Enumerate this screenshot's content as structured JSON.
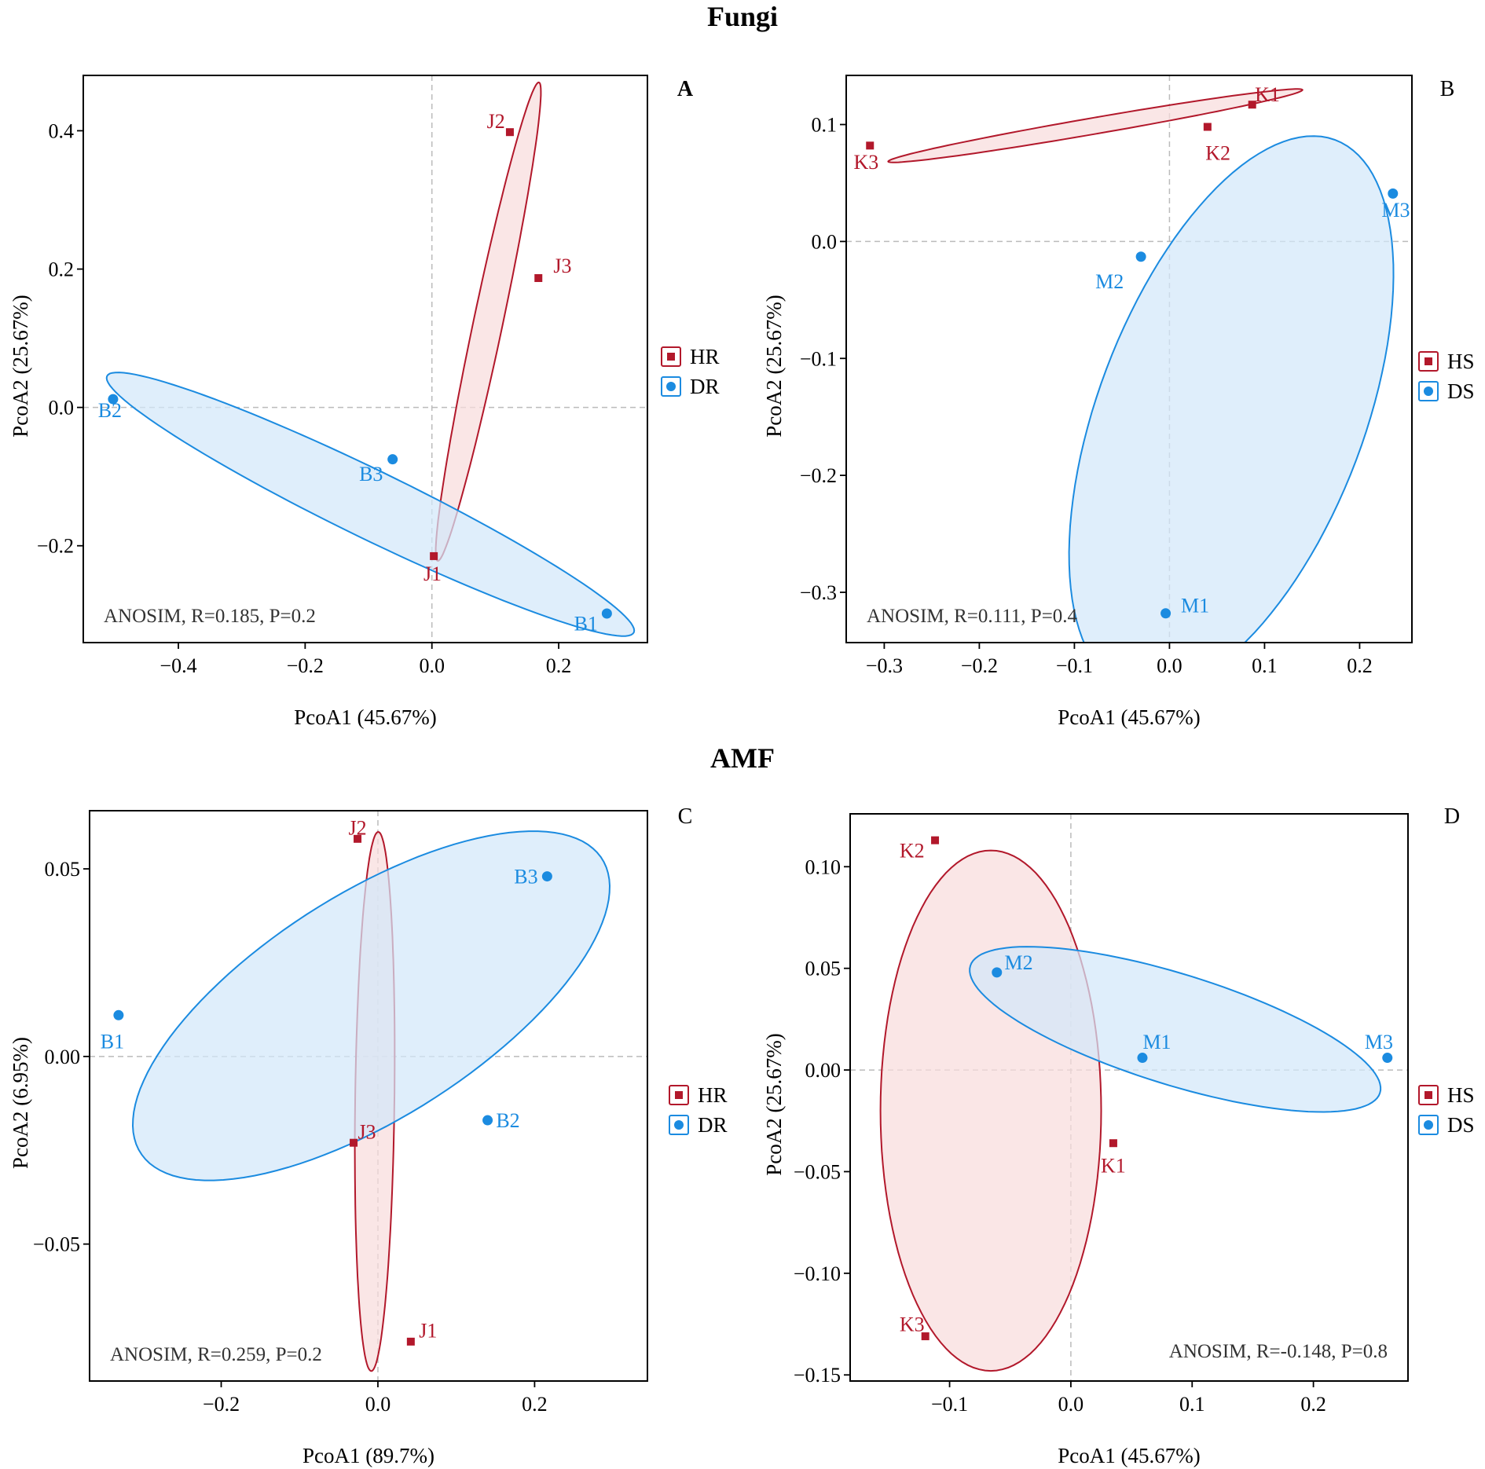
{
  "sections": [
    {
      "title": "Fungi"
    },
    {
      "title": "AMF"
    }
  ],
  "colors": {
    "red": "#b2182b",
    "red_fill": "#f8dcdc",
    "blue": "#1b8be0",
    "blue_fill": "#d3e8fa",
    "grid": "#bbbbbb",
    "axis": "#000000"
  },
  "chart_data": [
    {
      "id": "A",
      "type": "scatter",
      "panel_label": "A",
      "xlabel": "PcoA1 (45.67%)",
      "ylabel": "PcoA2 (25.67%)",
      "xlim": [
        -0.55,
        0.34
      ],
      "ylim": [
        -0.34,
        0.48
      ],
      "xticks": [
        -0.4,
        -0.2,
        0.0,
        0.2
      ],
      "xtick_labels": [
        "−0.4",
        "−0.2",
        "0.0",
        "0.2"
      ],
      "yticks": [
        -0.2,
        0.0,
        0.2,
        0.4
      ],
      "ytick_labels": [
        "−0.2",
        "0.0",
        "0.2",
        "0.4"
      ],
      "annotation": "ANOSIM, R=0.185, P=0.2",
      "legend": [
        {
          "label": "HR",
          "marker": "square",
          "color": "red"
        },
        {
          "label": "DR",
          "marker": "circle",
          "color": "blue"
        }
      ],
      "series": [
        {
          "name": "HR",
          "marker": "square",
          "color": "red",
          "points": [
            {
              "label": "J1",
              "x": 0.003,
              "y": -0.215,
              "ldx": -0.002,
              "ldy": -0.025
            },
            {
              "label": "J2",
              "x": 0.123,
              "y": 0.398,
              "ldx": -0.022,
              "ldy": 0.016
            },
            {
              "label": "J3",
              "x": 0.168,
              "y": 0.187,
              "ldx": 0.038,
              "ldy": 0.018
            }
          ],
          "ellipse": {
            "cx": 0.089,
            "cy": 0.124,
            "rx": 0.355,
            "ry": 0.023,
            "angle": 77
          }
        },
        {
          "name": "DR",
          "marker": "circle",
          "color": "blue",
          "points": [
            {
              "label": "B1",
              "x": 0.276,
              "y": -0.298,
              "ldx": -0.033,
              "ldy": -0.014
            },
            {
              "label": "B2",
              "x": -0.503,
              "y": 0.012,
              "ldx": -0.005,
              "ldy": -0.016
            },
            {
              "label": "B3",
              "x": -0.062,
              "y": -0.075,
              "ldx": -0.034,
              "ldy": -0.021
            }
          ],
          "ellipse": {
            "cx": -0.097,
            "cy": -0.14,
            "rx": 0.455,
            "ry": 0.05,
            "angle": -24
          }
        }
      ]
    },
    {
      "id": "B",
      "type": "scatter",
      "panel_label": "B",
      "xlabel": "PcoA1 (45.67%)",
      "ylabel": "PcoA2 (25.67%)",
      "xlim": [
        -0.34,
        0.255
      ],
      "ylim": [
        -0.343,
        0.142
      ],
      "xticks": [
        -0.3,
        -0.2,
        -0.1,
        0.0,
        0.1,
        0.2
      ],
      "xtick_labels": [
        "−0.3",
        "−0.2",
        "−0.1",
        "0.0",
        "0.1",
        "0.2"
      ],
      "yticks": [
        -0.3,
        -0.2,
        -0.1,
        0.0,
        0.1
      ],
      "ytick_labels": [
        "−0.3",
        "−0.2",
        "−0.1",
        "0.0",
        "0.1"
      ],
      "annotation": "ANOSIM, R=0.111, P=0.4",
      "legend": [
        {
          "label": "HS",
          "marker": "square",
          "color": "red"
        },
        {
          "label": "DS",
          "marker": "circle",
          "color": "blue"
        }
      ],
      "series": [
        {
          "name": "HS",
          "marker": "square",
          "color": "red",
          "points": [
            {
              "label": "K1",
              "x": 0.087,
              "y": 0.117,
              "ldx": 0.016,
              "ldy": 0.009
            },
            {
              "label": "K2",
              "x": 0.04,
              "y": 0.098,
              "ldx": 0.011,
              "ldy": -0.022
            },
            {
              "label": "K3",
              "x": -0.315,
              "y": 0.082,
              "ldx": -0.004,
              "ldy": -0.014
            }
          ],
          "ellipse": {
            "cx": -0.078,
            "cy": 0.099,
            "rx": 0.22,
            "ry": 0.007,
            "angle": 8
          }
        },
        {
          "name": "DS",
          "marker": "circle",
          "color": "blue",
          "points": [
            {
              "label": "M1",
              "x": -0.004,
              "y": -0.318,
              "ldx": 0.031,
              "ldy": 0.007
            },
            {
              "label": "M2",
              "x": -0.03,
              "y": -0.013,
              "ldx": -0.033,
              "ldy": -0.021
            },
            {
              "label": "M3",
              "x": 0.235,
              "y": 0.041,
              "ldx": 0.003,
              "ldy": -0.014
            }
          ],
          "ellipse": {
            "cx": 0.065,
            "cy": -0.148,
            "rx": 0.26,
            "ry": 0.135,
            "angle": 62
          }
        }
      ]
    },
    {
      "id": "C",
      "type": "scatter",
      "panel_label": "C",
      "xlabel": "PcoA1 (89.7%)",
      "ylabel": "PcoA2 (6.95%)",
      "xlim": [
        -0.368,
        0.344
      ],
      "ylim": [
        -0.0865,
        0.0655
      ],
      "xticks": [
        -0.2,
        0.0,
        0.2
      ],
      "xtick_labels": [
        "−0.2",
        "0.0",
        "0.2"
      ],
      "yticks": [
        -0.05,
        0.0,
        0.05
      ],
      "ytick_labels": [
        "−0.05",
        "0.00",
        "0.05"
      ],
      "annotation": "ANOSIM, R=0.259, P=0.2",
      "legend": [
        {
          "label": "HR",
          "marker": "square",
          "color": "red"
        },
        {
          "label": "DR",
          "marker": "circle",
          "color": "blue"
        }
      ],
      "series": [
        {
          "name": "HR",
          "marker": "square",
          "color": "red",
          "points": [
            {
              "label": "J1",
              "x": 0.042,
              "y": -0.076,
              "ldx": 0.022,
              "ldy": 0.003
            },
            {
              "label": "J2",
              "x": -0.026,
              "y": 0.058,
              "ldx": 0.0,
              "ldy": 0.003
            },
            {
              "label": "J3",
              "x": -0.031,
              "y": -0.023,
              "ldx": 0.017,
              "ldy": 0.003
            }
          ],
          "ellipse": {
            "cx": -0.004,
            "cy": -0.012,
            "rx": 0.072,
            "ry": 0.025,
            "angle": 86
          }
        },
        {
          "name": "DR",
          "marker": "circle",
          "color": "blue",
          "points": [
            {
              "label": "B1",
              "x": -0.331,
              "y": 0.011,
              "ldx": -0.008,
              "ldy": -0.007
            },
            {
              "label": "B2",
              "x": 0.14,
              "y": -0.017,
              "ldx": 0.026,
              "ldy": 0.0
            },
            {
              "label": "B3",
              "x": 0.216,
              "y": 0.048,
              "ldx": -0.027,
              "ldy": 0.0
            }
          ],
          "ellipse": {
            "cx": -0.0085,
            "cy": 0.0135,
            "rx": 0.306,
            "ry": 0.034,
            "angle": 6
          }
        }
      ]
    },
    {
      "id": "D",
      "type": "scatter",
      "panel_label": "D",
      "xlabel": "PcoA1 (45.67%)",
      "ylabel": "PcoA2 (25.67%)",
      "xlim": [
        -0.182,
        0.278
      ],
      "ylim": [
        -0.153,
        0.126
      ],
      "xticks": [
        -0.1,
        0.0,
        0.1,
        0.2
      ],
      "xtick_labels": [
        "−0.1",
        "0.0",
        "0.1",
        "0.2"
      ],
      "yticks": [
        -0.15,
        -0.1,
        -0.05,
        0.0,
        0.05,
        0.1
      ],
      "ytick_labels": [
        "−0.15",
        "−0.10",
        "−0.05",
        "0.00",
        "0.05",
        "0.10"
      ],
      "annotation": "ANOSIM, R=-0.148, P=0.8",
      "legend": [
        {
          "label": "HS",
          "marker": "square",
          "color": "red"
        },
        {
          "label": "DS",
          "marker": "circle",
          "color": "blue"
        }
      ],
      "series": [
        {
          "name": "HS",
          "marker": "square",
          "color": "red",
          "points": [
            {
              "label": "K1",
              "x": 0.035,
              "y": -0.036,
              "ldx": 0.0,
              "ldy": -0.011
            },
            {
              "label": "K2",
              "x": -0.112,
              "y": 0.113,
              "ldx": -0.019,
              "ldy": -0.005
            },
            {
              "label": "K3",
              "x": -0.12,
              "y": -0.131,
              "ldx": -0.011,
              "ldy": 0.006
            }
          ],
          "ellipse": {
            "cx": -0.066,
            "cy": -0.02,
            "rx": 0.091,
            "ry": 0.128,
            "angle": 0
          }
        },
        {
          "name": "DS",
          "marker": "circle",
          "color": "blue",
          "points": [
            {
              "label": "M1",
              "x": 0.059,
              "y": 0.006,
              "ldx": 0.012,
              "ldy": 0.008
            },
            {
              "label": "M2",
              "x": -0.061,
              "y": 0.048,
              "ldx": 0.018,
              "ldy": 0.005
            },
            {
              "label": "M3",
              "x": 0.261,
              "y": 0.006,
              "ldx": -0.007,
              "ldy": 0.008
            }
          ],
          "ellipse": {
            "cx": 0.086,
            "cy": 0.02,
            "rx": 0.172,
            "ry": 0.028,
            "angle": -10
          }
        }
      ]
    }
  ]
}
